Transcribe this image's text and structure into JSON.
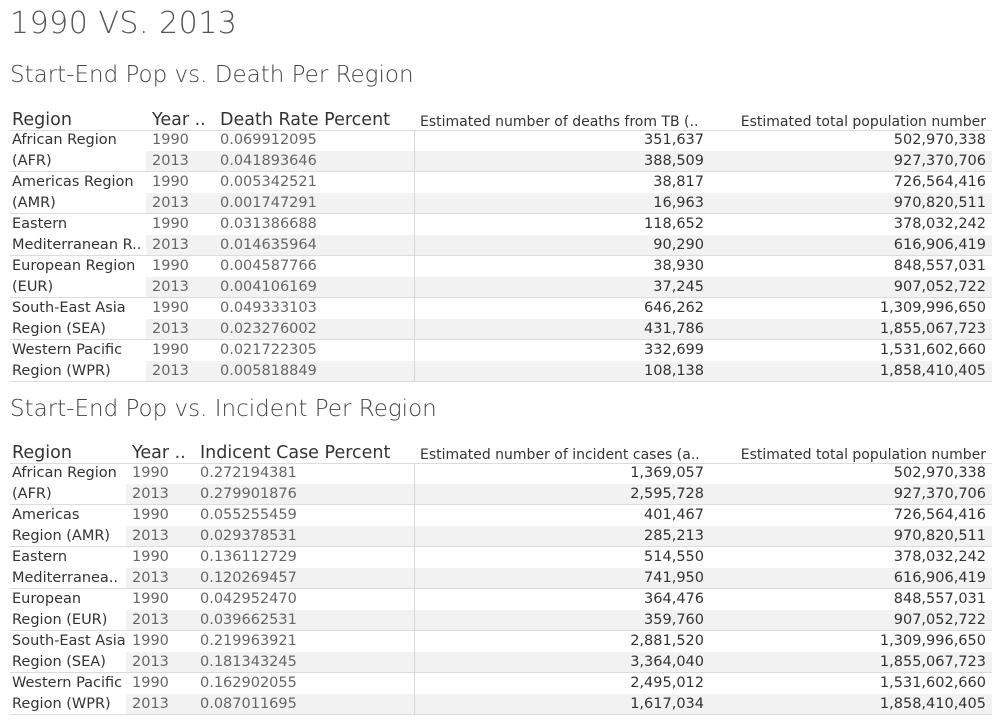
{
  "dashboard_title": "1990 VS. 2013",
  "deaths_sheet": {
    "title": "Start-End Pop vs. Death Per Region",
    "headers": {
      "region": "Region",
      "year": "Year ..",
      "rate": "Death Rate Percent",
      "count": "Estimated number of deaths from TB (..",
      "population": "Estimated total population number"
    },
    "rows": [
      {
        "region": "African Region",
        "year": "1990",
        "rate": "0.069912095",
        "count": "351,637",
        "population": "502,970,338"
      },
      {
        "region": "(AFR)",
        "year": "2013",
        "rate": "0.041893646",
        "count": "388,509",
        "population": "927,370,706"
      },
      {
        "region": "Americas Region",
        "year": "1990",
        "rate": "0.005342521",
        "count": "38,817",
        "population": "726,564,416"
      },
      {
        "region": "(AMR)",
        "year": "2013",
        "rate": "0.001747291",
        "count": "16,963",
        "population": "970,820,511"
      },
      {
        "region": "Eastern",
        "year": "1990",
        "rate": "0.031386688",
        "count": "118,652",
        "population": "378,032,242"
      },
      {
        "region": "Mediterranean R..",
        "year": "2013",
        "rate": "0.014635964",
        "count": "90,290",
        "population": "616,906,419"
      },
      {
        "region": "European Region",
        "year": "1990",
        "rate": "0.004587766",
        "count": "38,930",
        "population": "848,557,031"
      },
      {
        "region": "(EUR)",
        "year": "2013",
        "rate": "0.004106169",
        "count": "37,245",
        "population": "907,052,722"
      },
      {
        "region": "South-East Asia",
        "year": "1990",
        "rate": "0.049333103",
        "count": "646,262",
        "population": "1,309,996,650"
      },
      {
        "region": "Region (SEA)",
        "year": "2013",
        "rate": "0.023276002",
        "count": "431,786",
        "population": "1,855,067,723"
      },
      {
        "region": "Western Pacific",
        "year": "1990",
        "rate": "0.021722305",
        "count": "332,699",
        "population": "1,531,602,660"
      },
      {
        "region": "Region (WPR)",
        "year": "2013",
        "rate": "0.005818849",
        "count": "108,138",
        "population": "1,858,410,405"
      }
    ]
  },
  "incidents_sheet": {
    "title": "Start-End Pop vs. Incident Per Region",
    "headers": {
      "region": "Region",
      "year": "Year ..",
      "rate": "Indicent Case Percent",
      "count": "Estimated number of incident cases (a..",
      "population": "Estimated total population number"
    },
    "rows": [
      {
        "region": "African Region",
        "year": "1990",
        "rate": "0.272194381",
        "count": "1,369,057",
        "population": "502,970,338"
      },
      {
        "region": "(AFR)",
        "year": "2013",
        "rate": "0.279901876",
        "count": "2,595,728",
        "population": "927,370,706"
      },
      {
        "region": "Americas",
        "year": "1990",
        "rate": "0.055255459",
        "count": "401,467",
        "population": "726,564,416"
      },
      {
        "region": "Region (AMR)",
        "year": "2013",
        "rate": "0.029378531",
        "count": "285,213",
        "population": "970,820,511"
      },
      {
        "region": "Eastern",
        "year": "1990",
        "rate": "0.136112729",
        "count": "514,550",
        "population": "378,032,242"
      },
      {
        "region": "Mediterranea..",
        "year": "2013",
        "rate": "0.120269457",
        "count": "741,950",
        "population": "616,906,419"
      },
      {
        "region": "European",
        "year": "1990",
        "rate": "0.042952470",
        "count": "364,476",
        "population": "848,557,031"
      },
      {
        "region": "Region (EUR)",
        "year": "2013",
        "rate": "0.039662531",
        "count": "359,760",
        "population": "907,052,722"
      },
      {
        "region": "South-East Asia",
        "year": "1990",
        "rate": "0.219963921",
        "count": "2,881,520",
        "population": "1,309,996,650"
      },
      {
        "region": "Region (SEA)",
        "year": "2013",
        "rate": "0.181343245",
        "count": "3,364,040",
        "population": "1,855,067,723"
      },
      {
        "region": "Western Pacific",
        "year": "1990",
        "rate": "0.162902055",
        "count": "2,495,012",
        "population": "1,531,602,660"
      },
      {
        "region": "Region (WPR)",
        "year": "2013",
        "rate": "0.087011695",
        "count": "1,617,034",
        "population": "1,858,410,405"
      }
    ]
  },
  "colors": {
    "band": "#f2f2f2",
    "divider": "#dcdcdc",
    "text": "#333333",
    "muted": "#666666"
  }
}
